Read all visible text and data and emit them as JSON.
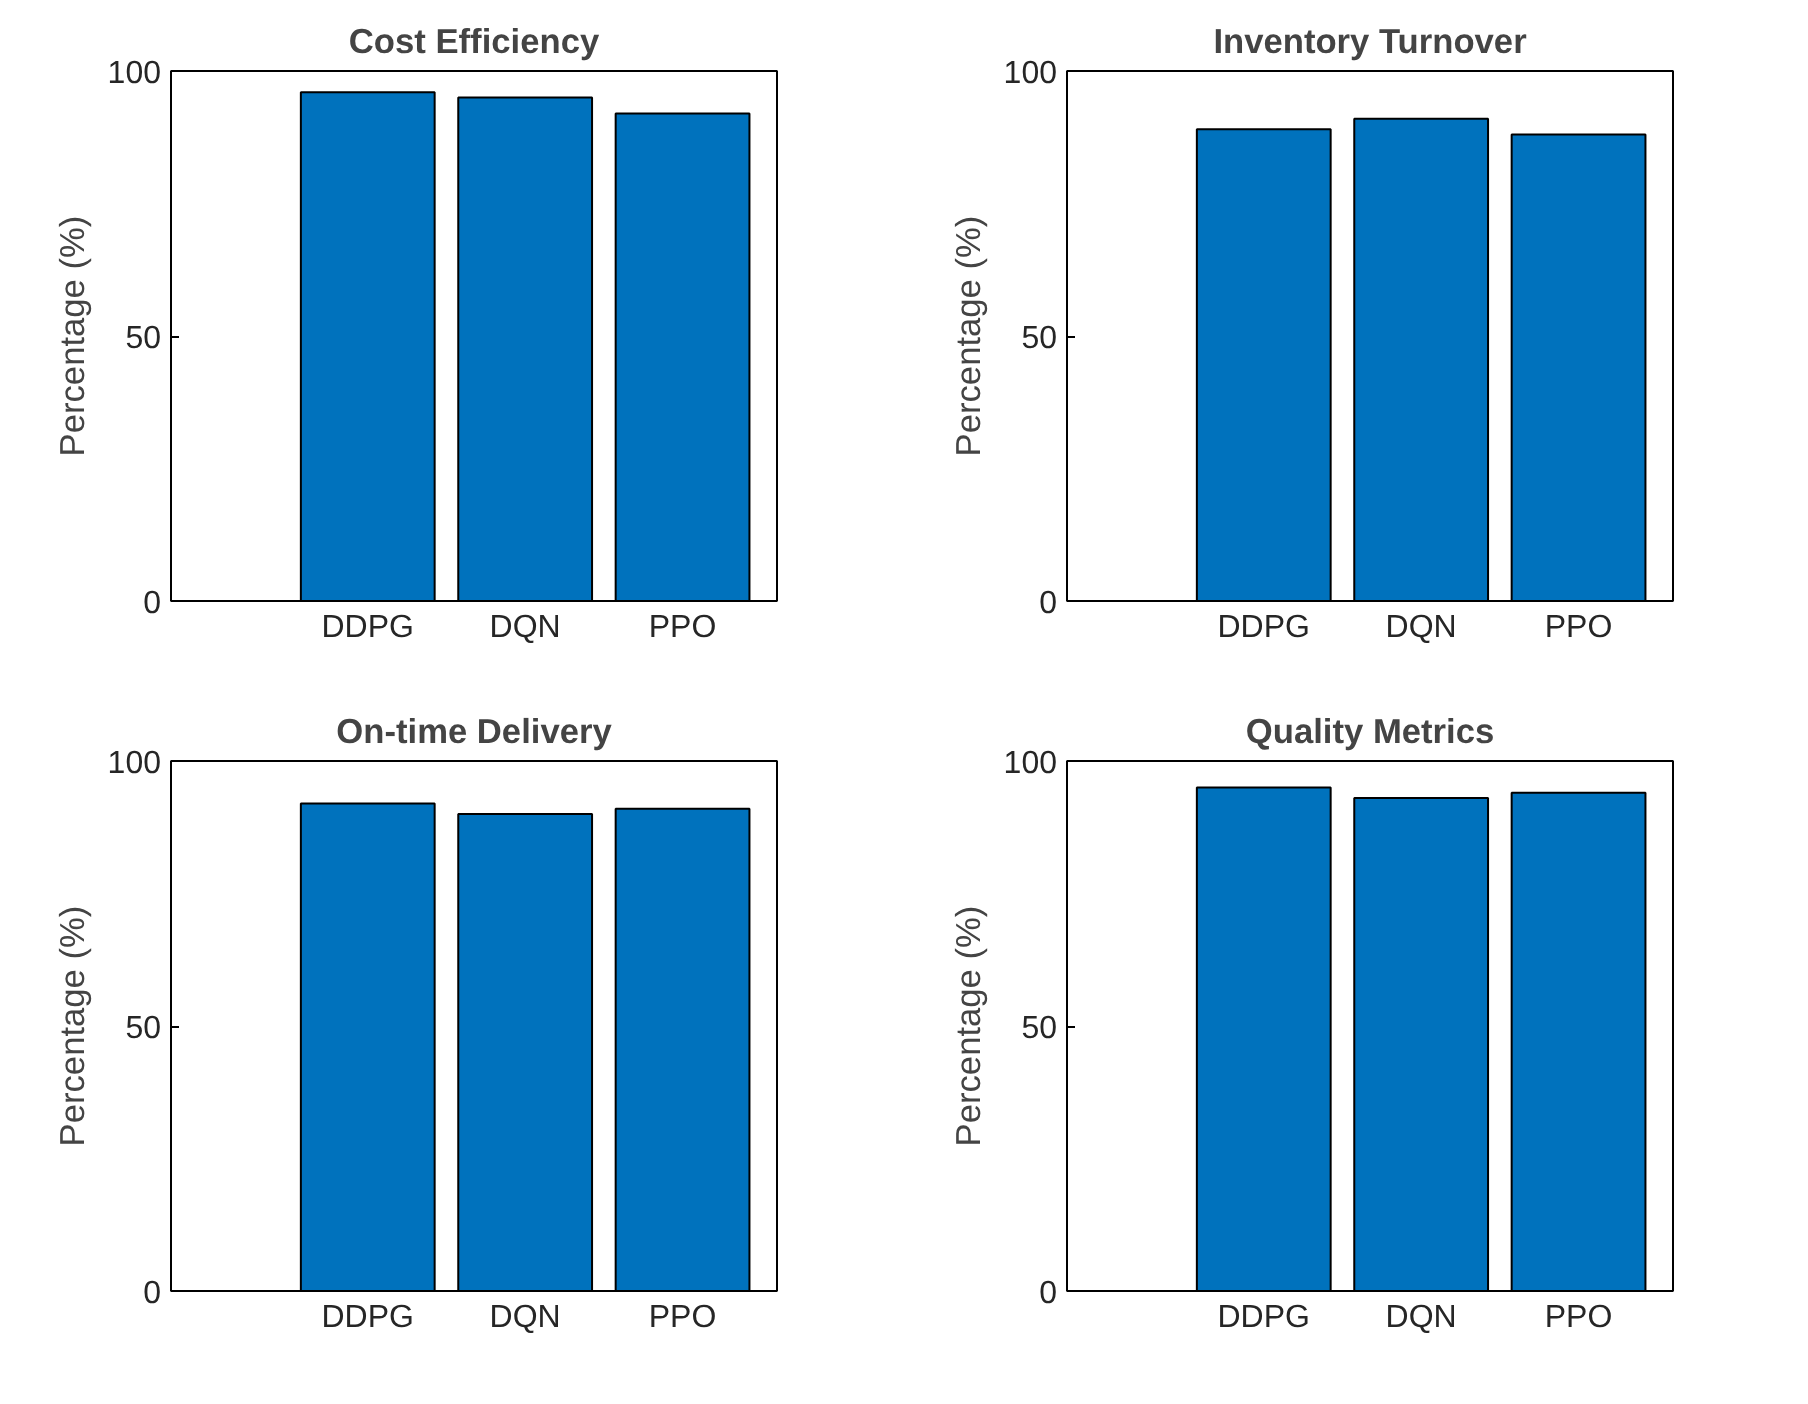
{
  "chart_data": [
    {
      "type": "bar",
      "title": "Cost Efficiency",
      "ylabel": "Percentage (%)",
      "categories": [
        "DDPG",
        "DQN",
        "PPO"
      ],
      "values": [
        96,
        95,
        92
      ],
      "color": "#0072bd",
      "ylim": [
        0,
        100
      ],
      "yticks": [
        0,
        50,
        100
      ],
      "grid": false
    },
    {
      "type": "bar",
      "title": "Inventory Turnover",
      "ylabel": "Percentage (%)",
      "categories": [
        "DDPG",
        "DQN",
        "PPO"
      ],
      "values": [
        89,
        91,
        88
      ],
      "color": "#0072bd",
      "ylim": [
        0,
        100
      ],
      "yticks": [
        0,
        50,
        100
      ],
      "grid": false
    },
    {
      "type": "bar",
      "title": "On-time Delivery",
      "ylabel": "Percentage (%)",
      "categories": [
        "DDPG",
        "DQN",
        "PPO"
      ],
      "values": [
        92,
        90,
        91
      ],
      "color": "#0072bd",
      "ylim": [
        0,
        100
      ],
      "yticks": [
        0,
        50,
        100
      ],
      "grid": false
    },
    {
      "type": "bar",
      "title": "Quality Metrics",
      "ylabel": "Percentage (%)",
      "categories": [
        "DDPG",
        "DQN",
        "PPO"
      ],
      "values": [
        95,
        93,
        94
      ],
      "color": "#0072bd",
      "ylim": [
        0,
        100
      ],
      "yticks": [
        0,
        50,
        100
      ],
      "grid": false
    }
  ]
}
